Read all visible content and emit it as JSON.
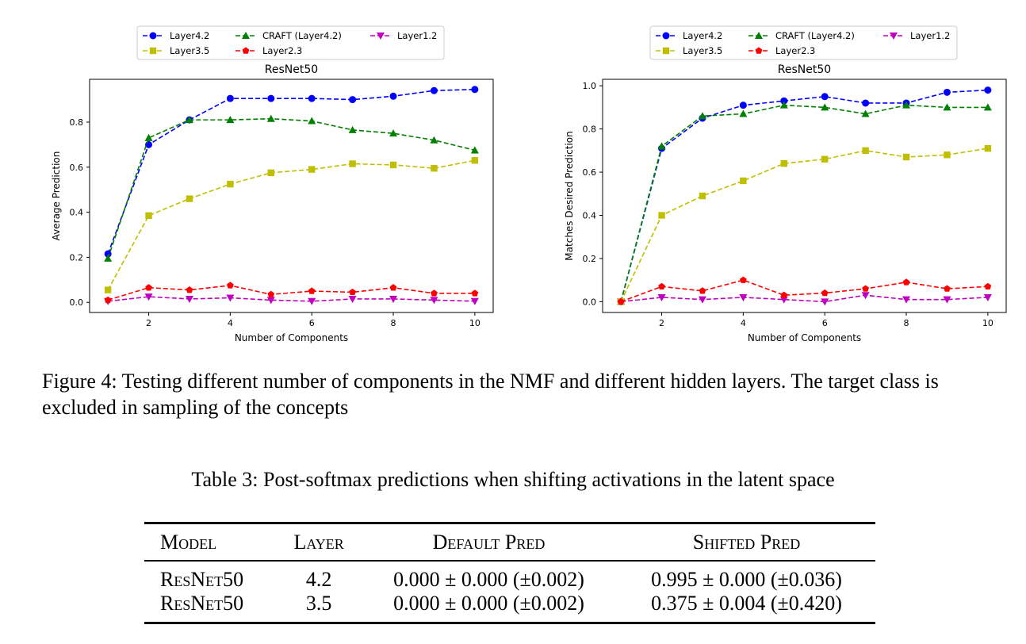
{
  "chart_data": [
    {
      "type": "line",
      "title": "ResNet50",
      "xlabel": "Number of Components",
      "ylabel": "Average Prediction",
      "x": [
        1,
        2,
        3,
        4,
        5,
        6,
        7,
        8,
        9,
        10
      ],
      "xlim": [
        0.55,
        10.45
      ],
      "ylim": [
        -0.045,
        0.99
      ],
      "xticks": [
        2,
        4,
        6,
        8,
        10
      ],
      "yticks": [
        0.0,
        0.2,
        0.4,
        0.6,
        0.8
      ],
      "ytick_labels": [
        "0.0",
        "0.2",
        "0.4",
        "0.6",
        "0.8"
      ],
      "grid": false,
      "legend_position": "above the plot",
      "series": [
        {
          "name": "Layer4.2",
          "color": "#0000ff",
          "marker": "circle",
          "values": [
            0.215,
            0.7,
            0.81,
            0.905,
            0.905,
            0.905,
            0.9,
            0.915,
            0.94,
            0.945
          ]
        },
        {
          "name": "CRAFT (Layer4.2)",
          "color": "#008000",
          "marker": "triangle-up",
          "values": [
            0.195,
            0.73,
            0.81,
            0.81,
            0.815,
            0.805,
            0.765,
            0.75,
            0.72,
            0.675
          ]
        },
        {
          "name": "Layer1.2",
          "color": "#bf00bf",
          "marker": "triangle-down",
          "values": [
            0.005,
            0.025,
            0.015,
            0.02,
            0.01,
            0.005,
            0.015,
            0.015,
            0.01,
            0.005
          ]
        },
        {
          "name": "Layer3.5",
          "color": "#bfbf00",
          "marker": "square",
          "values": [
            0.055,
            0.385,
            0.46,
            0.525,
            0.575,
            0.59,
            0.615,
            0.61,
            0.595,
            0.63
          ]
        },
        {
          "name": "Layer2.3",
          "color": "#ff0000",
          "marker": "pentagon",
          "values": [
            0.01,
            0.065,
            0.055,
            0.075,
            0.035,
            0.05,
            0.045,
            0.065,
            0.04,
            0.04
          ]
        }
      ]
    },
    {
      "type": "line",
      "title": "ResNet50",
      "xlabel": "Number of Components",
      "ylabel": "Matches Desired Prediction",
      "x": [
        1,
        2,
        3,
        4,
        5,
        6,
        7,
        8,
        9,
        10
      ],
      "xlim": [
        0.55,
        10.45
      ],
      "ylim": [
        -0.05,
        1.03
      ],
      "xticks": [
        2,
        4,
        6,
        8,
        10
      ],
      "yticks": [
        0.0,
        0.2,
        0.4,
        0.6,
        0.8,
        1.0
      ],
      "ytick_labels": [
        "0.0",
        "0.2",
        "0.4",
        "0.6",
        "0.8",
        "1.0"
      ],
      "grid": false,
      "legend_position": "above the plot",
      "series": [
        {
          "name": "Layer4.2",
          "color": "#0000ff",
          "marker": "circle",
          "values": [
            0.0,
            0.71,
            0.85,
            0.91,
            0.93,
            0.95,
            0.92,
            0.92,
            0.97,
            0.98
          ]
        },
        {
          "name": "CRAFT (Layer4.2)",
          "color": "#008000",
          "marker": "triangle-up",
          "values": [
            0.0,
            0.72,
            0.86,
            0.87,
            0.91,
            0.9,
            0.87,
            0.91,
            0.9,
            0.9
          ]
        },
        {
          "name": "Layer1.2",
          "color": "#bf00bf",
          "marker": "triangle-down",
          "values": [
            0.0,
            0.02,
            0.01,
            0.02,
            0.01,
            0.0,
            0.03,
            0.01,
            0.01,
            0.02
          ]
        },
        {
          "name": "Layer3.5",
          "color": "#bfbf00",
          "marker": "square",
          "values": [
            0.0,
            0.4,
            0.49,
            0.56,
            0.64,
            0.66,
            0.7,
            0.67,
            0.68,
            0.71
          ]
        },
        {
          "name": "Layer2.3",
          "color": "#ff0000",
          "marker": "pentagon",
          "values": [
            0.0,
            0.07,
            0.05,
            0.1,
            0.03,
            0.04,
            0.06,
            0.09,
            0.06,
            0.07
          ]
        }
      ]
    }
  ],
  "figure_caption": "Figure 4: Testing different number of components in the NMF and different hidden layers. The target class is excluded in sampling of the concepts",
  "table": {
    "caption": "Table 3: Post-softmax predictions when shifting activations in the latent space",
    "headers": [
      "Model",
      "Layer",
      "Default Pred",
      "Shifted Pred"
    ],
    "rows": [
      [
        "ResNet50",
        "4.2",
        "0.000 ± 0.000 (±0.002)",
        "0.995 ± 0.000 (±0.036)"
      ],
      [
        "ResNet50",
        "3.5",
        "0.000 ± 0.000 (±0.002)",
        "0.375 ± 0.004 (±0.420)"
      ]
    ]
  }
}
